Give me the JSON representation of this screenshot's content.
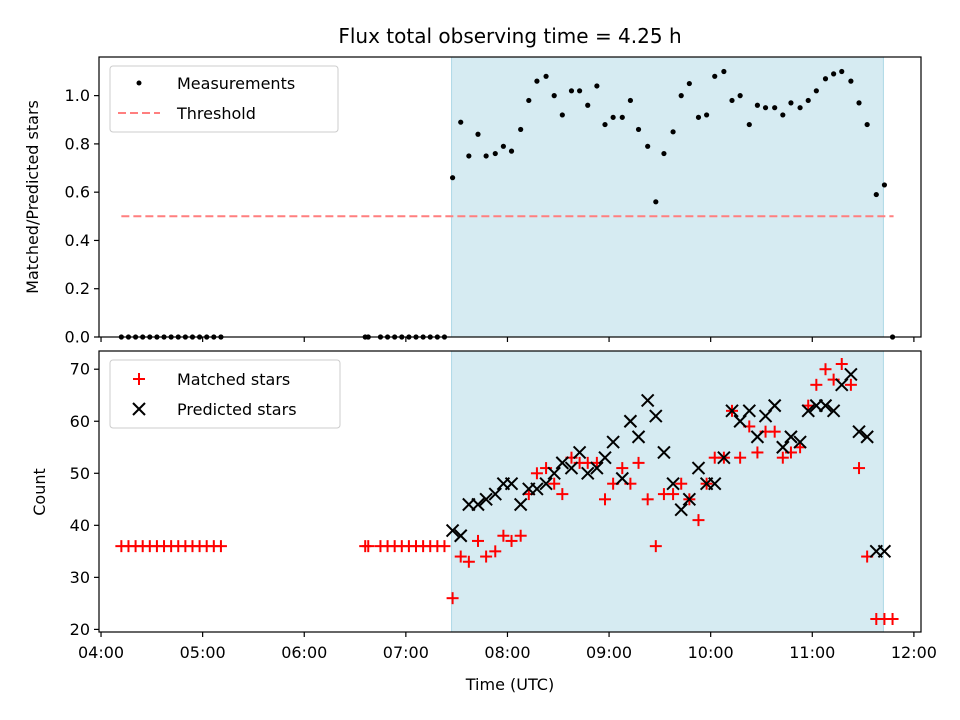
{
  "chart_data": [
    {
      "type": "scatter",
      "title": "Flux total observing time = 4.25 h",
      "xlabel": "",
      "ylabel": "Matched/Predicted stars",
      "x_unit": "hour UTC",
      "xlim": [
        3.98,
        12.07
      ],
      "ylim": [
        0,
        1.16
      ],
      "yticks": [
        0.0,
        0.2,
        0.4,
        0.6,
        0.8,
        1.0
      ],
      "ytick_labels": [
        "0.0",
        "0.2",
        "0.4",
        "0.6",
        "0.8",
        "1.0"
      ],
      "observing_window": [
        7.45,
        11.7
      ],
      "legend": {
        "position": "upper left",
        "entries": [
          "Measurements",
          "Threshold"
        ]
      },
      "series": [
        {
          "name": "Measurements",
          "kind": "scatter",
          "color": "#000000",
          "x": [
            4.2,
            4.27,
            4.34,
            4.41,
            4.48,
            4.55,
            4.62,
            4.69,
            4.76,
            4.83,
            4.9,
            4.97,
            5.04,
            5.11,
            5.18,
            6.6,
            6.63,
            6.75,
            6.82,
            6.89,
            6.96,
            7.03,
            7.1,
            7.17,
            7.24,
            7.31,
            7.38,
            7.46,
            7.54,
            7.62,
            7.71,
            7.79,
            7.88,
            7.96,
            8.04,
            8.13,
            8.21,
            8.29,
            8.38,
            8.46,
            8.54,
            8.63,
            8.71,
            8.79,
            8.88,
            8.96,
            9.04,
            9.13,
            9.21,
            9.29,
            9.38,
            9.46,
            9.54,
            9.63,
            9.71,
            9.79,
            9.88,
            9.96,
            10.04,
            10.13,
            10.21,
            10.29,
            10.38,
            10.46,
            10.54,
            10.63,
            10.71,
            10.79,
            10.88,
            10.96,
            11.04,
            11.13,
            11.21,
            11.29,
            11.38,
            11.46,
            11.54,
            11.63,
            11.71,
            11.79
          ],
          "y": [
            0,
            0,
            0,
            0,
            0,
            0,
            0,
            0,
            0,
            0,
            0,
            0,
            0,
            0,
            0,
            0,
            0,
            0,
            0,
            0,
            0,
            0,
            0,
            0,
            0,
            0,
            0,
            0.66,
            0.89,
            0.75,
            0.84,
            0.75,
            0.76,
            0.79,
            0.77,
            0.86,
            0.98,
            1.06,
            1.08,
            1.0,
            0.92,
            1.02,
            1.02,
            0.96,
            1.04,
            0.88,
            0.91,
            0.91,
            0.98,
            0.86,
            0.79,
            0.56,
            0.76,
            0.85,
            1.0,
            1.05,
            0.91,
            0.92,
            1.08,
            1.1,
            0.98,
            1.0,
            0.88,
            0.96,
            0.95,
            0.95,
            0.92,
            0.97,
            0.95,
            0.98,
            1.02,
            1.07,
            1.09,
            1.1,
            1.06,
            0.97,
            0.88,
            0.59,
            0.63,
            0.0
          ]
        },
        {
          "name": "Threshold",
          "kind": "line",
          "style": "dashed",
          "color": "#ff7f7f",
          "x": [
            4.2,
            11.8
          ],
          "y": [
            0.5,
            0.5
          ]
        }
      ]
    },
    {
      "type": "scatter",
      "title": "",
      "xlabel": "Time (UTC)",
      "ylabel": "Count",
      "x_unit": "hour UTC",
      "xlim": [
        3.98,
        12.07
      ],
      "ylim": [
        19.5,
        73.5
      ],
      "yticks": [
        20,
        30,
        40,
        50,
        60,
        70
      ],
      "ytick_labels": [
        "20",
        "30",
        "40",
        "50",
        "60",
        "70"
      ],
      "xticks": [
        4,
        5,
        6,
        7,
        8,
        9,
        10,
        11,
        12
      ],
      "xtick_labels": [
        "04:00",
        "05:00",
        "06:00",
        "07:00",
        "08:00",
        "09:00",
        "10:00",
        "11:00",
        "12:00"
      ],
      "observing_window": [
        7.45,
        11.7
      ],
      "legend": {
        "position": "upper left",
        "entries": [
          "Matched stars",
          "Predicted stars"
        ]
      },
      "series": [
        {
          "name": "Matched stars",
          "marker": "plus",
          "color": "#ff0000",
          "x": [
            4.2,
            4.27,
            4.34,
            4.41,
            4.48,
            4.55,
            4.62,
            4.69,
            4.76,
            4.83,
            4.9,
            4.97,
            5.04,
            5.11,
            5.18,
            6.6,
            6.63,
            6.75,
            6.82,
            6.89,
            6.96,
            7.03,
            7.1,
            7.17,
            7.24,
            7.31,
            7.38,
            7.46,
            7.54,
            7.62,
            7.71,
            7.79,
            7.88,
            7.96,
            8.04,
            8.13,
            8.21,
            8.29,
            8.38,
            8.46,
            8.54,
            8.63,
            8.71,
            8.79,
            8.88,
            8.96,
            9.04,
            9.13,
            9.21,
            9.29,
            9.38,
            9.46,
            9.54,
            9.63,
            9.71,
            9.79,
            9.88,
            9.96,
            10.04,
            10.13,
            10.21,
            10.29,
            10.38,
            10.46,
            10.54,
            10.63,
            10.71,
            10.79,
            10.88,
            10.96,
            11.04,
            11.13,
            11.21,
            11.29,
            11.38,
            11.46,
            11.54,
            11.63,
            11.71,
            11.79
          ],
          "y": [
            36,
            36,
            36,
            36,
            36,
            36,
            36,
            36,
            36,
            36,
            36,
            36,
            36,
            36,
            36,
            36,
            36,
            36,
            36,
            36,
            36,
            36,
            36,
            36,
            36,
            36,
            36,
            26,
            34,
            33,
            37,
            34,
            35,
            38,
            37,
            38,
            46,
            50,
            51,
            48,
            46,
            53,
            52,
            52,
            52,
            45,
            48,
            51,
            48,
            52,
            45,
            36,
            46,
            46,
            48,
            45,
            41,
            48,
            53,
            53,
            62,
            53,
            59,
            54,
            58,
            58,
            53,
            54,
            55,
            63,
            67,
            70,
            68,
            71,
            67,
            51,
            34,
            22,
            22,
            22
          ],
          "y_note": "first 27 values constant 36"
        },
        {
          "name": "Predicted stars",
          "marker": "x",
          "color": "#000000",
          "x": [
            7.46,
            7.54,
            7.62,
            7.71,
            7.79,
            7.88,
            7.96,
            8.04,
            8.13,
            8.21,
            8.29,
            8.38,
            8.46,
            8.54,
            8.63,
            8.71,
            8.79,
            8.88,
            8.96,
            9.04,
            9.13,
            9.21,
            9.29,
            9.38,
            9.46,
            9.54,
            9.63,
            9.71,
            9.79,
            9.88,
            9.96,
            10.04,
            10.13,
            10.21,
            10.29,
            10.38,
            10.46,
            10.54,
            10.63,
            10.71,
            10.79,
            10.88,
            10.96,
            11.04,
            11.13,
            11.21,
            11.29,
            11.38,
            11.46,
            11.54,
            11.63,
            11.71
          ],
          "y": [
            39,
            38,
            44,
            44,
            45,
            46,
            48,
            48,
            44,
            47,
            47,
            48,
            50,
            52,
            51,
            54,
            50,
            51,
            53,
            56,
            49,
            60,
            57,
            64,
            61,
            54,
            48,
            43,
            45,
            51,
            48,
            48,
            53,
            62,
            60,
            62,
            57,
            61,
            63,
            55,
            57,
            56,
            62,
            63,
            63,
            62,
            67,
            69,
            58,
            57,
            35,
            35
          ]
        }
      ]
    }
  ]
}
